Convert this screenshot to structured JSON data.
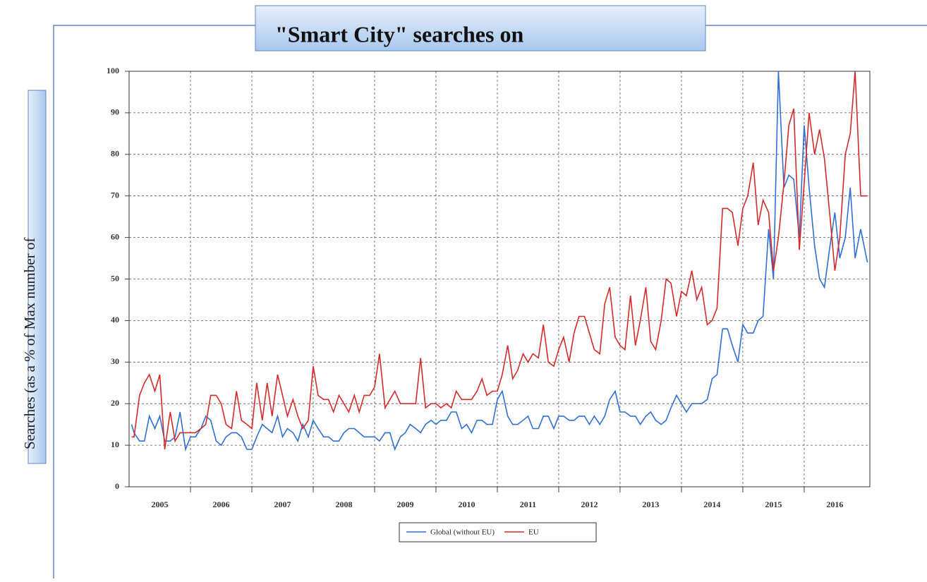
{
  "chart_data": {
    "type": "line",
    "title": "\"Smart City\" searches on",
    "y_label": "Searches (as a % of Max number of",
    "xlim": [
      2005,
      2017.07
    ],
    "ylim": [
      0,
      100
    ],
    "yticks": [
      0,
      10,
      20,
      30,
      40,
      50,
      60,
      70,
      80,
      90,
      100
    ],
    "xticks": [
      {
        "value": 2005.5,
        "label": "2005"
      },
      {
        "value": 2006.5,
        "label": "2006"
      },
      {
        "value": 2007.5,
        "label": "2007"
      },
      {
        "value": 2008.5,
        "label": "2008"
      },
      {
        "value": 2009.5,
        "label": "2009"
      },
      {
        "value": 2010.5,
        "label": "2010"
      },
      {
        "value": 2011.5,
        "label": "2011"
      },
      {
        "value": 2012.5,
        "label": "2012"
      },
      {
        "value": 2013.5,
        "label": "2013"
      },
      {
        "value": 2014.5,
        "label": "2014"
      },
      {
        "value": 2015.5,
        "label": "2015"
      },
      {
        "value": 2016.5,
        "label": "2016"
      }
    ],
    "xgrid": [
      2006,
      2007,
      2008,
      2009,
      2010,
      2011,
      2012,
      2013,
      2014,
      2015,
      2016
    ],
    "grid": true,
    "legend": "bottom",
    "x": [
      2005.04,
      2005.08,
      2005.17,
      2005.25,
      2005.33,
      2005.42,
      2005.5,
      2005.58,
      2005.67,
      2005.75,
      2005.83,
      2005.92,
      2006,
      2006.08,
      2006.17,
      2006.25,
      2006.33,
      2006.42,
      2006.5,
      2006.58,
      2006.67,
      2006.75,
      2006.83,
      2006.92,
      2007,
      2007.08,
      2007.17,
      2007.25,
      2007.33,
      2007.42,
      2007.5,
      2007.58,
      2007.67,
      2007.75,
      2007.83,
      2007.92,
      2008,
      2008.08,
      2008.17,
      2008.25,
      2008.33,
      2008.42,
      2008.5,
      2008.58,
      2008.67,
      2008.75,
      2008.83,
      2008.92,
      2009,
      2009.08,
      2009.17,
      2009.25,
      2009.33,
      2009.42,
      2009.5,
      2009.58,
      2009.67,
      2009.75,
      2009.83,
      2009.92,
      2010,
      2010.08,
      2010.17,
      2010.25,
      2010.33,
      2010.42,
      2010.5,
      2010.58,
      2010.67,
      2010.75,
      2010.83,
      2010.92,
      2011,
      2011.08,
      2011.17,
      2011.25,
      2011.33,
      2011.42,
      2011.5,
      2011.58,
      2011.67,
      2011.75,
      2011.83,
      2011.92,
      2012,
      2012.08,
      2012.17,
      2012.25,
      2012.33,
      2012.42,
      2012.5,
      2012.58,
      2012.67,
      2012.75,
      2012.83,
      2012.92,
      2013,
      2013.08,
      2013.17,
      2013.25,
      2013.33,
      2013.42,
      2013.5,
      2013.58,
      2013.67,
      2013.75,
      2013.83,
      2013.92,
      2014,
      2014.08,
      2014.17,
      2014.25,
      2014.33,
      2014.42,
      2014.5,
      2014.58,
      2014.67,
      2014.75,
      2014.83,
      2014.92,
      2015,
      2015.08,
      2015.17,
      2015.25,
      2015.33,
      2015.42,
      2015.5,
      2015.58,
      2015.67,
      2015.75,
      2015.83,
      2015.92,
      2016,
      2016.08,
      2016.17,
      2016.25,
      2016.33,
      2016.42,
      2016.5,
      2016.58,
      2016.67,
      2016.75,
      2016.83,
      2016.92,
      2017.03
    ],
    "series": [
      {
        "name": "Global (without EU)",
        "color": "#2f6fd6",
        "values": [
          15,
          13,
          11,
          11,
          17,
          14,
          17,
          11,
          11,
          12,
          18,
          9,
          12,
          12,
          14,
          17,
          16,
          11,
          10,
          12,
          13,
          13,
          12,
          9,
          9,
          12,
          15,
          14,
          13,
          17,
          12,
          14,
          13,
          11,
          15,
          12,
          16,
          14,
          12,
          12,
          11,
          11,
          13,
          14,
          14,
          13,
          12,
          12,
          12,
          11,
          13,
          13,
          9,
          12,
          13,
          15,
          14,
          13,
          15,
          16,
          15,
          16,
          16,
          18,
          18,
          14,
          15,
          13,
          16,
          16,
          15,
          15,
          21,
          23,
          17,
          15,
          15,
          16,
          17,
          14,
          14,
          17,
          17,
          14,
          17,
          17,
          16,
          16,
          17,
          17,
          15,
          17,
          15,
          17,
          21,
          23,
          18,
          18,
          17,
          17,
          15,
          17,
          18,
          16,
          15,
          16,
          19,
          22,
          20,
          18,
          20,
          20,
          20,
          21,
          26,
          27,
          38,
          38,
          34,
          30,
          39,
          37,
          37,
          40,
          41,
          62,
          50,
          100,
          72,
          75,
          74,
          60,
          87,
          72,
          58,
          50,
          48,
          58,
          66,
          55,
          60,
          72,
          55,
          62,
          54
        ]
      },
      {
        "name": "EU",
        "color": "#d42a2a",
        "values": [
          12,
          12,
          22,
          25,
          27,
          23,
          27,
          9,
          18,
          11,
          13,
          13,
          13,
          13,
          14,
          15,
          22,
          22,
          20,
          15,
          14,
          23,
          16,
          15,
          14,
          25,
          16,
          25,
          17,
          27,
          22,
          17,
          21,
          17,
          14,
          16,
          29,
          22,
          21,
          21,
          18,
          22,
          20,
          18,
          22,
          18,
          22,
          22,
          24,
          32,
          19,
          21,
          23,
          20,
          20,
          20,
          20,
          31,
          19,
          20,
          20,
          19,
          20,
          19,
          23,
          21,
          21,
          21,
          23,
          26,
          22,
          23,
          23,
          27,
          34,
          26,
          28,
          32,
          30,
          32,
          31,
          39,
          30,
          29,
          33,
          36,
          30,
          37,
          41,
          41,
          37,
          33,
          32,
          44,
          48,
          36,
          34,
          33,
          46,
          34,
          40,
          48,
          35,
          33,
          40,
          50,
          49,
          41,
          47,
          46,
          52,
          45,
          48,
          39,
          40,
          43,
          67,
          67,
          66,
          58,
          67,
          70,
          78,
          63,
          69,
          66,
          52,
          60,
          73,
          87,
          91,
          57,
          73,
          90,
          80,
          86,
          79,
          65,
          52,
          60,
          80,
          85,
          100,
          70,
          70
        ]
      }
    ]
  }
}
